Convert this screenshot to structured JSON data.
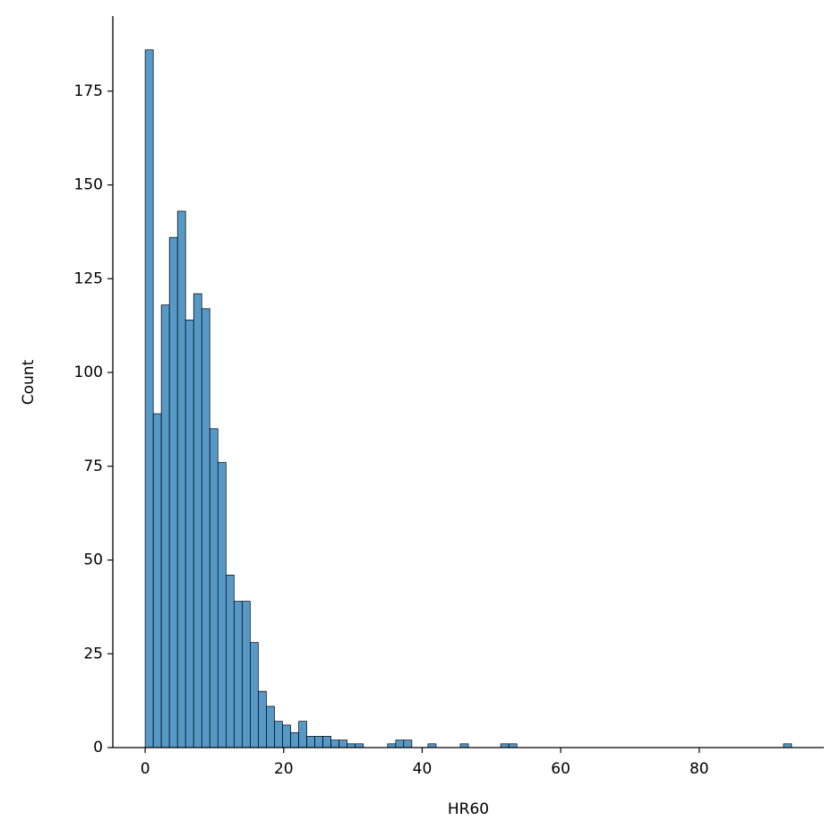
{
  "chart_data": {
    "type": "histogram",
    "x_label": "HR60",
    "y_label": "Count",
    "color": "#5799c6",
    "bins": [
      0,
      1.17,
      2.33,
      3.5,
      4.67,
      5.83,
      7,
      8.17,
      9.33,
      10.5,
      11.67,
      12.83,
      14,
      15.17,
      16.33,
      17.5,
      18.67,
      19.83,
      21,
      22.17,
      23.33,
      24.5,
      25.67,
      26.83,
      28,
      29.17,
      30.33,
      31.5,
      32.67,
      33.83,
      35,
      36.17,
      37.33,
      38.5,
      39.67,
      40.83,
      42,
      43.17,
      44.33,
      45.5,
      46.67,
      47.83,
      49,
      50.17,
      51.33,
      52.5,
      53.67,
      54.83,
      56,
      57.17,
      58.33,
      59.5,
      60.67,
      61.83,
      63,
      64.17,
      65.33,
      66.5,
      67.67,
      68.83,
      70,
      71.17,
      72.33,
      73.5,
      74.67,
      75.83,
      77,
      78.17,
      79.33,
      80.5,
      81.67,
      82.83,
      84,
      85.17,
      86.33,
      87.5,
      88.67,
      89.83,
      91,
      92.17,
      93.33
    ],
    "values": [
      186,
      89,
      118,
      136,
      143,
      114,
      121,
      117,
      85,
      76,
      46,
      39,
      39,
      28,
      15,
      11,
      7,
      6,
      4,
      7,
      3,
      3,
      3,
      2,
      2,
      1,
      1,
      0,
      0,
      0,
      1,
      2,
      2,
      0,
      0,
      1,
      0,
      0,
      0,
      1,
      0,
      0,
      0,
      0,
      1,
      1,
      0,
      0,
      0,
      0,
      0,
      0,
      0,
      0,
      0,
      0,
      0,
      0,
      0,
      0,
      0,
      0,
      0,
      0,
      0,
      0,
      0,
      0,
      0,
      0,
      0,
      0,
      0,
      0,
      0,
      0,
      0,
      0,
      0,
      1
    ],
    "xlim": [
      -4.67,
      98
    ],
    "ylim": [
      0,
      195
    ],
    "xticks": [
      0,
      20,
      40,
      60,
      80
    ],
    "yticks": [
      0,
      25,
      50,
      75,
      100,
      125,
      150,
      175
    ]
  }
}
